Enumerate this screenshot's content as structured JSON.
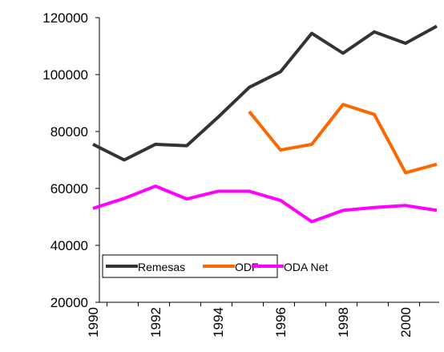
{
  "chart_data": {
    "type": "line",
    "categories": [
      "1990",
      null,
      "1992",
      null,
      "1994",
      null,
      "1996",
      null,
      "1998",
      null,
      "2000",
      null
    ],
    "series": [
      {
        "name": "Remesas",
        "color": "#333333",
        "values": [
          75500,
          70000,
          75500,
          75000,
          85000,
          95500,
          101000,
          114500,
          107500,
          115000,
          111000,
          117000
        ]
      },
      {
        "name": "ODF",
        "color": "#ff6600",
        "values": [
          null,
          null,
          null,
          null,
          null,
          87000,
          73500,
          75500,
          89500,
          86000,
          65500,
          68500
        ]
      },
      {
        "name": "ODA Net",
        "color": "#ff00ff",
        "values": [
          53000,
          56500,
          60800,
          56300,
          59000,
          59000,
          55800,
          48300,
          52300,
          53300,
          54000,
          52300
        ]
      }
    ],
    "ylim": [
      20000,
      120000
    ],
    "yticks": [
      20000,
      40000,
      60000,
      80000,
      100000,
      120000
    ],
    "grid": false
  }
}
